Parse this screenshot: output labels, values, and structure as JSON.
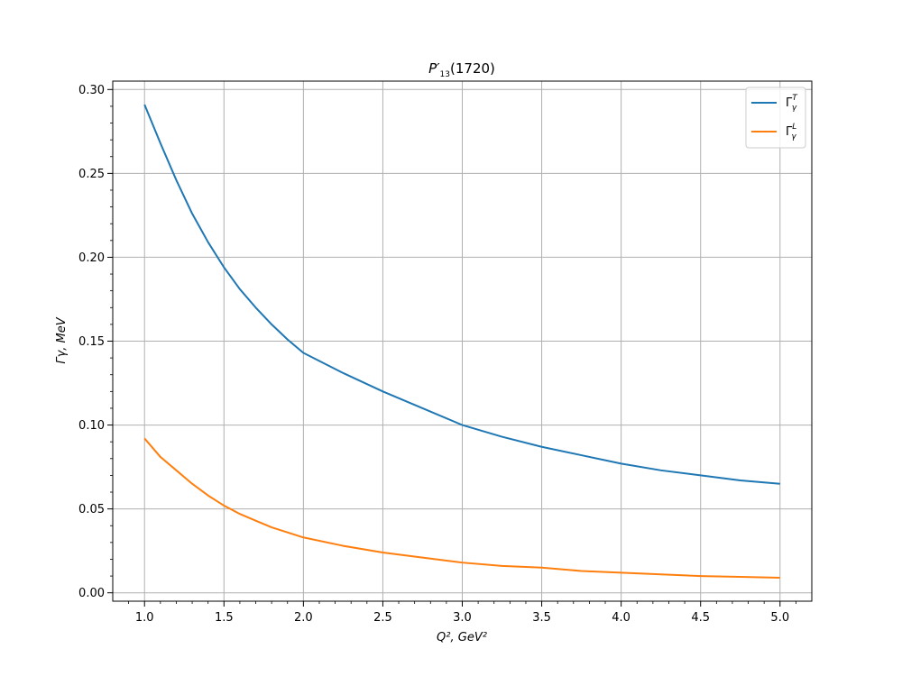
{
  "chart_data": {
    "type": "line",
    "title": "P′13(1720)",
    "title_main": "P′",
    "title_sub": "13",
    "title_tail": "(1720)",
    "xlabel": "Q², GeV²",
    "ylabel": "Γγ, MeV",
    "xlim": [
      0.8,
      5.2
    ],
    "ylim": [
      -0.005,
      0.305
    ],
    "xticks": [
      1.0,
      1.5,
      2.0,
      2.5,
      3.0,
      3.5,
      4.0,
      4.5,
      5.0
    ],
    "xtick_labels": [
      "1.0",
      "1.5",
      "2.0",
      "2.5",
      "3.0",
      "3.5",
      "4.0",
      "4.5",
      "5.0"
    ],
    "yticks": [
      0.0,
      0.05,
      0.1,
      0.15,
      0.2,
      0.25,
      0.3
    ],
    "ytick_labels": [
      "0.00",
      "0.05",
      "0.10",
      "0.15",
      "0.20",
      "0.25",
      "0.30"
    ],
    "grid": true,
    "legend_position": "top-right",
    "x": [
      1.0,
      1.1,
      1.2,
      1.3,
      1.4,
      1.5,
      1.6,
      1.7,
      1.8,
      1.9,
      2.0,
      2.25,
      2.5,
      2.75,
      3.0,
      3.25,
      3.5,
      3.75,
      4.0,
      4.25,
      4.5,
      4.75,
      5.0
    ],
    "series": [
      {
        "name": "Γγ^T",
        "legend_main": "Γ",
        "legend_sup": "T",
        "legend_sub": "γ",
        "color": "#1f77b4",
        "values": [
          0.291,
          0.268,
          0.246,
          0.226,
          0.209,
          0.194,
          0.181,
          0.17,
          0.16,
          0.151,
          0.143,
          0.131,
          0.12,
          0.11,
          0.1,
          0.093,
          0.087,
          0.082,
          0.077,
          0.073,
          0.07,
          0.067,
          0.065
        ]
      },
      {
        "name": "Γγ^L",
        "legend_main": "Γ",
        "legend_sup": "L",
        "legend_sub": "γ",
        "color": "#ff7f0e",
        "values": [
          0.092,
          0.081,
          0.073,
          0.065,
          0.058,
          0.052,
          0.047,
          0.043,
          0.039,
          0.036,
          0.033,
          0.028,
          0.024,
          0.021,
          0.018,
          0.016,
          0.015,
          0.013,
          0.012,
          0.011,
          0.01,
          0.0095,
          0.009
        ]
      }
    ]
  }
}
